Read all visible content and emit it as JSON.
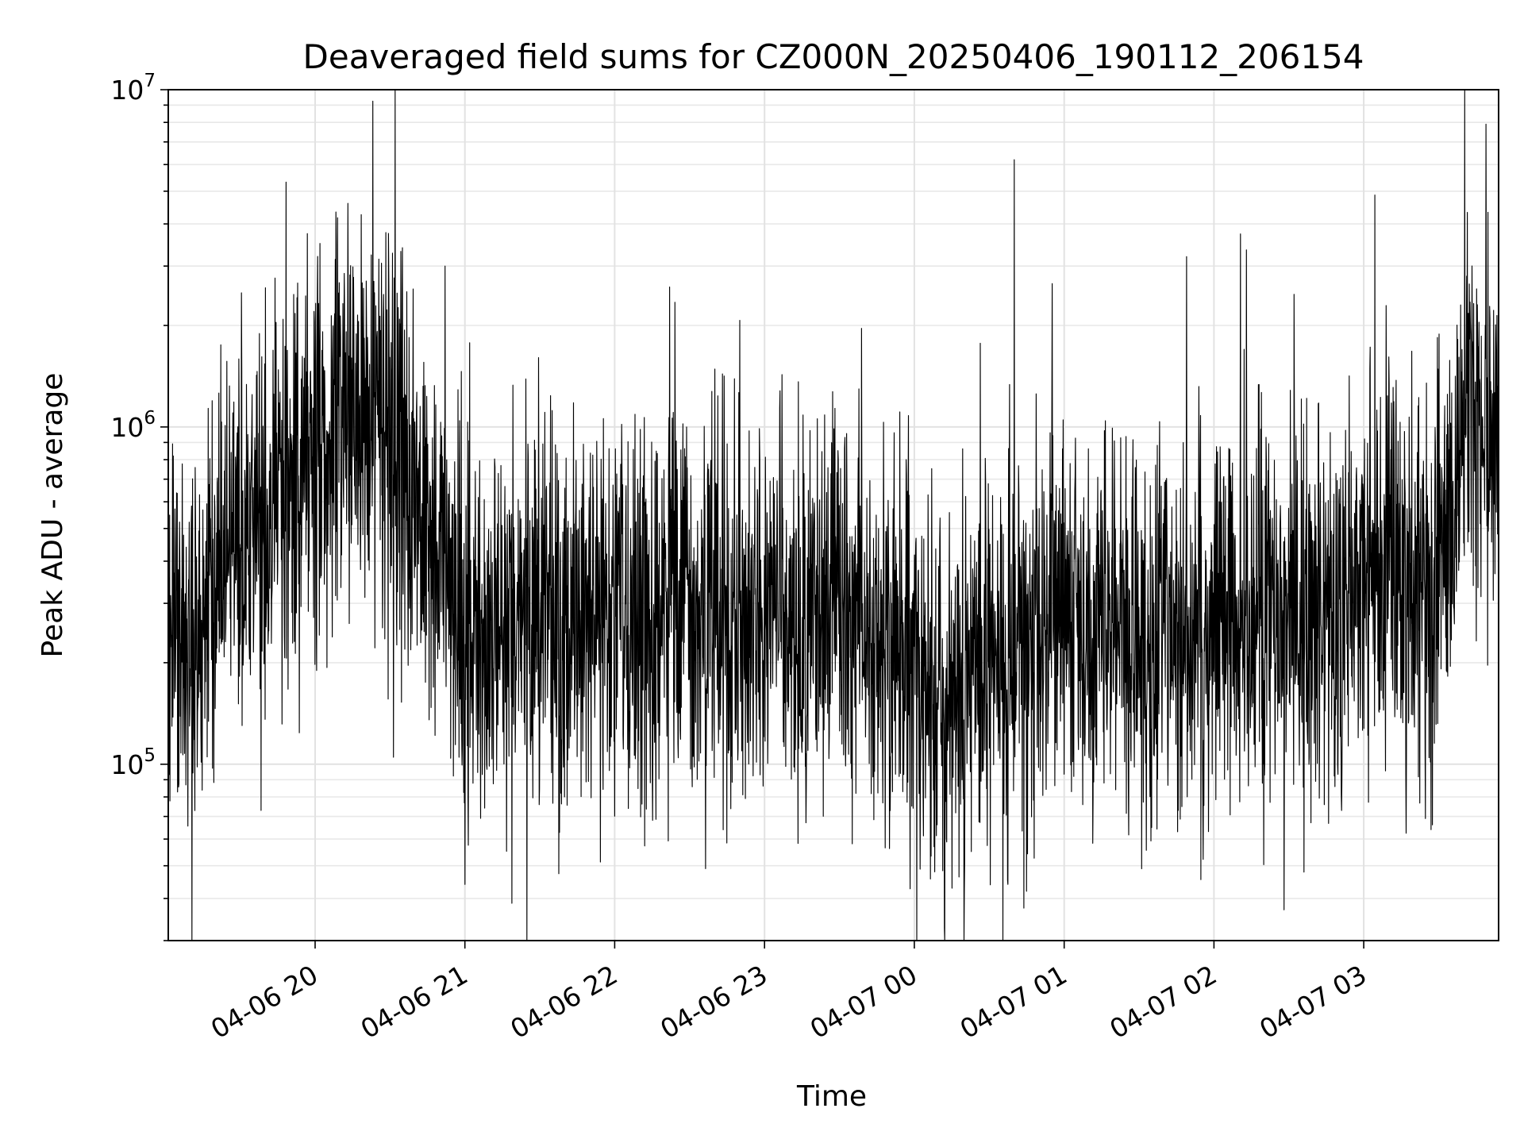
{
  "chart_data": {
    "type": "line",
    "title": "Deaveraged field sums for CZ000N_20250406_190112_206154",
    "xlabel": "Time",
    "ylabel": "Peak ADU - average",
    "yscale": "log",
    "ylim": [
      30000,
      10000000
    ],
    "xlim": [
      "2025-04-06 19:01:12",
      "2025-04-07 03:54:00"
    ],
    "grid": true,
    "legend": "none",
    "line_color": "#000000",
    "x_ticks": [
      {
        "value": "2025-04-06 20:00",
        "label": "04-06 20"
      },
      {
        "value": "2025-04-06 21:00",
        "label": "04-06 21"
      },
      {
        "value": "2025-04-06 22:00",
        "label": "04-06 22"
      },
      {
        "value": "2025-04-06 23:00",
        "label": "04-06 23"
      },
      {
        "value": "2025-04-07 00:00",
        "label": "04-07 00"
      },
      {
        "value": "2025-04-07 01:00",
        "label": "04-07 01"
      },
      {
        "value": "2025-04-07 02:00",
        "label": "04-07 02"
      },
      {
        "value": "2025-04-07 03:00",
        "label": "04-07 03"
      }
    ],
    "y_ticks": [
      {
        "value": 100000,
        "base": "10",
        "exp": "5"
      },
      {
        "value": 1000000,
        "base": "10",
        "exp": "6"
      },
      {
        "value": 10000000,
        "base": "10",
        "exp": "7"
      }
    ],
    "series": [
      {
        "x": [
          "2025-04-06 19:01",
          "2025-04-06 19:10",
          "2025-04-06 19:20",
          "2025-04-06 19:30",
          "2025-04-06 19:40",
          "2025-04-06 19:50",
          "2025-04-06 20:00",
          "2025-04-06 20:10",
          "2025-04-06 20:20",
          "2025-04-06 20:30",
          "2025-04-06 20:40",
          "2025-04-06 20:50",
          "2025-04-06 21:00",
          "2025-04-06 21:10",
          "2025-04-06 21:20",
          "2025-04-06 21:30",
          "2025-04-06 21:40",
          "2025-04-06 21:50",
          "2025-04-06 22:00",
          "2025-04-06 22:10",
          "2025-04-06 22:20",
          "2025-04-06 22:30",
          "2025-04-06 22:40",
          "2025-04-06 22:50",
          "2025-04-06 23:00",
          "2025-04-06 23:10",
          "2025-04-06 23:20",
          "2025-04-06 23:30",
          "2025-04-06 23:40",
          "2025-04-06 23:50",
          "2025-04-07 00:00",
          "2025-04-07 00:10",
          "2025-04-07 00:20",
          "2025-04-07 00:30",
          "2025-04-07 00:40",
          "2025-04-07 00:50",
          "2025-04-07 01:00",
          "2025-04-07 01:10",
          "2025-04-07 01:20",
          "2025-04-07 01:30",
          "2025-04-07 01:40",
          "2025-04-07 01:50",
          "2025-04-07 02:00",
          "2025-04-07 02:10",
          "2025-04-07 02:20",
          "2025-04-07 02:30",
          "2025-04-07 02:40",
          "2025-04-07 02:50",
          "2025-04-07 03:00",
          "2025-04-07 03:10",
          "2025-04-07 03:20",
          "2025-04-07 03:30",
          "2025-04-07 03:40",
          "2025-04-07 03:50"
        ],
        "y": [
          250000,
          220000,
          320000,
          450000,
          500000,
          650000,
          850000,
          1100000,
          1050000,
          850000,
          650000,
          420000,
          270000,
          220000,
          250000,
          300000,
          280000,
          260000,
          270000,
          260000,
          270000,
          280000,
          270000,
          280000,
          260000,
          270000,
          260000,
          270000,
          270000,
          240000,
          200000,
          150000,
          180000,
          200000,
          220000,
          240000,
          250000,
          250000,
          260000,
          270000,
          260000,
          270000,
          260000,
          280000,
          280000,
          250000,
          270000,
          290000,
          350000,
          370000,
          380000,
          380000,
          950000,
          900000
        ],
        "peaks": [
          {
            "x": "2025-04-06 20:02",
            "y": 3500000
          },
          {
            "x": "2025-04-06 20:35",
            "y": 3400000
          },
          {
            "x": "2025-04-06 20:52",
            "y": 3000000
          },
          {
            "x": "2025-04-06 22:22",
            "y": 2600000
          },
          {
            "x": "2025-04-07 00:40",
            "y": 6200000
          },
          {
            "x": "2025-04-07 01:49",
            "y": 3200000
          },
          {
            "x": "2025-04-07 02:13",
            "y": 3350000
          },
          {
            "x": "2025-04-07 03:49",
            "y": 7900000
          }
        ],
        "troughs": [
          {
            "x": "2025-04-06 21:00",
            "y": 44000
          },
          {
            "x": "2025-04-07 00:20",
            "y": 42000
          },
          {
            "x": "2025-04-07 00:45",
            "y": 42000
          },
          {
            "x": "2025-04-07 02:28",
            "y": 37000
          }
        ]
      }
    ]
  }
}
